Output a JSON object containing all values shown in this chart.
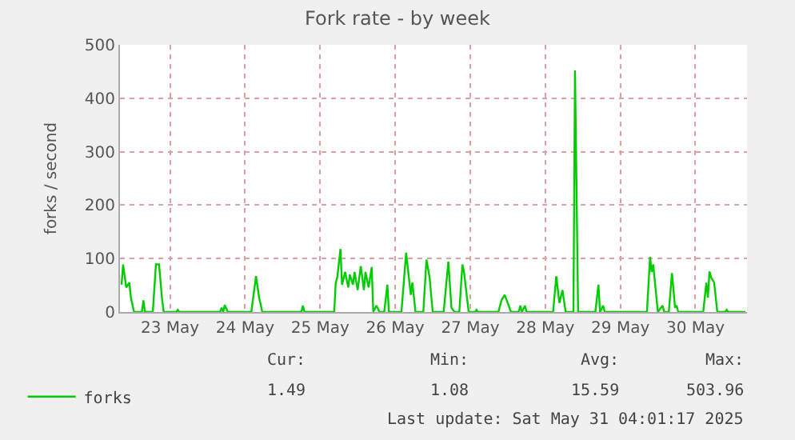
{
  "chart_data": {
    "type": "line",
    "title": "Fork rate - by week",
    "ylabel": "forks / second",
    "x": [
      "2025-05-22T20:30",
      "2025-05-22T21:00",
      "2025-05-22T22:00",
      "2025-05-22T23:00",
      "2025-05-22T23:30",
      "2025-05-23T00:30",
      "2025-05-23T03:00",
      "2025-05-23T03:30",
      "2025-05-23T04:00",
      "2025-05-23T06:30",
      "2025-05-23T07:30",
      "2025-05-23T08:30",
      "2025-05-23T09:30",
      "2025-05-23T10:00",
      "2025-05-23T14:00",
      "2025-05-23T14:30",
      "2025-05-23T15:00",
      "2025-05-24T04:00",
      "2025-05-24T04:30",
      "2025-05-24T05:00",
      "2025-05-24T05:30",
      "2025-05-24T06:30",
      "2025-05-24T14:00",
      "2025-05-24T15:30",
      "2025-05-24T16:30",
      "2025-05-24T17:30",
      "2025-05-25T06:00",
      "2025-05-25T06:30",
      "2025-05-25T07:00",
      "2025-05-25T16:30",
      "2025-05-25T17:00",
      "2025-05-25T17:30",
      "2025-05-25T18:30",
      "2025-05-25T19:00",
      "2025-05-25T20:00",
      "2025-05-25T21:00",
      "2025-05-25T21:30",
      "2025-05-25T22:30",
      "2025-05-25T23:00",
      "2025-05-26T00:00",
      "2025-05-26T01:00",
      "2025-05-26T02:00",
      "2025-05-26T02:30",
      "2025-05-26T03:30",
      "2025-05-26T04:30",
      "2025-05-26T05:00",
      "2025-05-26T06:00",
      "2025-05-26T07:00",
      "2025-05-26T08:30",
      "2025-05-26T09:30",
      "2025-05-26T10:00",
      "2025-05-26T14:00",
      "2025-05-26T15:30",
      "2025-05-26T17:00",
      "2025-05-26T17:30",
      "2025-05-26T18:30",
      "2025-05-26T21:00",
      "2025-05-26T22:00",
      "2025-05-26T23:00",
      "2025-05-27T00:00",
      "2025-05-27T03:30",
      "2025-05-27T05:00",
      "2025-05-27T06:00",
      "2025-05-27T07:00",
      "2025-05-27T08:30",
      "2025-05-27T09:30",
      "2025-05-27T10:00",
      "2025-05-27T11:30",
      "2025-05-27T13:30",
      "2025-05-27T14:00",
      "2025-05-27T14:30",
      "2025-05-27T21:00",
      "2025-05-27T22:00",
      "2025-05-27T23:00",
      "2025-05-28T00:00",
      "2025-05-28T01:00",
      "2025-05-28T03:30",
      "2025-05-28T04:00",
      "2025-05-28T04:30",
      "2025-05-28T05:30",
      "2025-05-28T06:00",
      "2025-05-28T14:30",
      "2025-05-28T15:30",
      "2025-05-28T16:30",
      "2025-05-28T17:30",
      "2025-05-28T18:30",
      "2025-05-28T21:00",
      "2025-05-28T21:30",
      "2025-05-28T22:30",
      "2025-05-29T04:00",
      "2025-05-29T05:00",
      "2025-05-29T05:30",
      "2025-05-29T06:30",
      "2025-05-29T07:00",
      "2025-05-29T20:30",
      "2025-05-29T21:30",
      "2025-05-29T22:00",
      "2025-05-29T22:30",
      "2025-05-30T00:00",
      "2025-05-30T01:30",
      "2025-05-30T02:00",
      "2025-05-30T03:30",
      "2025-05-30T04:30",
      "2025-05-30T05:30",
      "2025-05-30T06:00",
      "2025-05-30T06:30",
      "2025-05-30T14:30",
      "2025-05-30T15:30",
      "2025-05-30T16:00",
      "2025-05-30T16:30",
      "2025-05-30T17:00",
      "2025-05-30T18:00",
      "2025-05-30T19:00",
      "2025-05-30T21:30",
      "2025-05-30T22:00",
      "2025-05-30T22:30",
      "2025-05-31T04:00"
    ],
    "series": [
      {
        "name": "forks",
        "color": "#00cc00",
        "values": [
          51,
          89,
          46,
          55,
          27,
          0,
          0,
          22,
          0,
          0,
          89,
          89,
          22,
          0,
          0,
          4,
          0,
          0,
          8,
          0,
          13,
          0,
          0,
          67,
          27,
          0,
          0,
          12,
          0,
          0,
          55,
          65,
          118,
          51,
          75,
          46,
          70,
          51,
          75,
          41,
          86,
          41,
          75,
          46,
          84,
          0,
          12,
          0,
          0,
          51,
          0,
          0,
          111,
          32,
          55,
          0,
          0,
          98,
          65,
          0,
          0,
          94,
          8,
          0,
          0,
          89,
          75,
          0,
          0,
          4,
          0,
          0,
          22,
          32,
          17,
          0,
          0,
          12,
          0,
          12,
          0,
          0,
          67,
          17,
          41,
          0,
          0,
          452,
          0,
          0,
          51,
          0,
          12,
          0,
          0,
          103,
          75,
          89,
          0,
          12,
          0,
          0,
          73,
          8,
          12,
          0,
          0,
          55,
          27,
          76,
          65,
          55,
          0,
          0,
          4,
          0,
          0
        ]
      }
    ],
    "xlim": [
      "2025-05-22T20:00",
      "2025-05-31T04:30"
    ],
    "xticks": [
      {
        "value": "2025-05-23T12:00",
        "label": "23 May"
      },
      {
        "value": "2025-05-24T12:00",
        "label": "24 May"
      },
      {
        "value": "2025-05-25T12:00",
        "label": "25 May"
      },
      {
        "value": "2025-05-26T12:00",
        "label": "26 May"
      },
      {
        "value": "2025-05-27T12:00",
        "label": "27 May"
      },
      {
        "value": "2025-05-28T12:00",
        "label": "28 May"
      },
      {
        "value": "2025-05-29T12:00",
        "label": "29 May"
      },
      {
        "value": "2025-05-30T12:00",
        "label": "30 May"
      }
    ],
    "ylim": [
      0,
      500
    ],
    "yticks": [
      0,
      100,
      200,
      300,
      400,
      500
    ],
    "grid": true,
    "legend": "bottom left",
    "marker": "none",
    "line_style": "solid",
    "annotations": [
      "Cur:",
      "Min:",
      "Avg:",
      "Max:",
      "1.49",
      "1.08",
      "15.59",
      "503.96",
      "Last update: Sat May 31 04:01:17 2025"
    ]
  }
}
